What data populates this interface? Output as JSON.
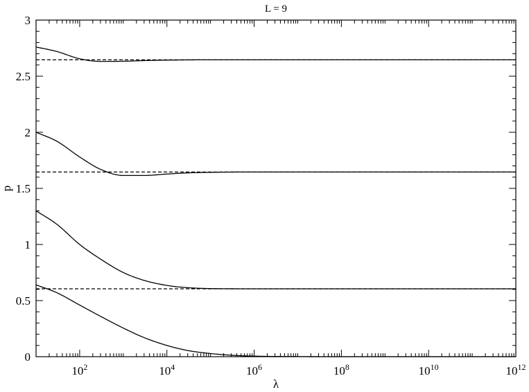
{
  "chart_data": {
    "type": "line",
    "title": "L = 9",
    "xlabel": "λ",
    "ylabel": "p",
    "x_scale": "log",
    "xlim": [
      10,
      1000000000000
    ],
    "ylim": [
      0,
      3
    ],
    "x_major_ticks": [
      {
        "value": 100,
        "base": "10",
        "exp": "2"
      },
      {
        "value": 10000,
        "base": "10",
        "exp": "4"
      },
      {
        "value": 1000000,
        "base": "10",
        "exp": "6"
      },
      {
        "value": 100000000,
        "base": "10",
        "exp": "8"
      },
      {
        "value": 10000000000,
        "base": "10",
        "exp": "10"
      },
      {
        "value": 1000000000000,
        "base": "10",
        "exp": "12"
      }
    ],
    "y_major_ticks": [
      {
        "value": 0,
        "label": "0"
      },
      {
        "value": 0.5,
        "label": "0.5"
      },
      {
        "value": 1,
        "label": "1"
      },
      {
        "value": 1.5,
        "label": "1.5"
      },
      {
        "value": 2,
        "label": "2"
      },
      {
        "value": 2.5,
        "label": "2.5"
      },
      {
        "value": 3,
        "label": "3"
      }
    ],
    "y_minor_step": 0.1,
    "series": [
      {
        "style": "solid",
        "x": [
          10,
          30,
          100,
          300,
          1000,
          3000,
          10000,
          100000,
          1000000,
          10000000000,
          1000000000000
        ],
        "values": [
          2.76,
          2.72,
          2.655,
          2.632,
          2.633,
          2.639,
          2.643,
          2.646,
          2.646,
          2.646,
          2.646
        ]
      },
      {
        "style": "solid",
        "x": [
          10,
          30,
          100,
          300,
          1000,
          3000,
          10000,
          30000,
          100000,
          1000000,
          10000000,
          1000000000000
        ],
        "values": [
          2.0,
          1.92,
          1.78,
          1.67,
          1.615,
          1.615,
          1.628,
          1.638,
          1.643,
          1.646,
          1.646,
          1.646
        ]
      },
      {
        "style": "solid",
        "x": [
          10,
          30,
          100,
          300,
          1000,
          3000,
          10000,
          30000,
          100000,
          1000000,
          10000000,
          1000000000000
        ],
        "values": [
          1.3,
          1.18,
          1.0,
          0.87,
          0.75,
          0.68,
          0.635,
          0.615,
          0.607,
          0.605,
          0.605,
          0.605
        ]
      },
      {
        "style": "solid",
        "x": [
          10,
          30,
          100,
          300,
          1000,
          3000,
          10000,
          30000,
          100000,
          300000,
          1000000,
          10000000,
          100000000,
          1000000000000
        ],
        "values": [
          0.64,
          0.57,
          0.46,
          0.36,
          0.255,
          0.17,
          0.1,
          0.055,
          0.028,
          0.013,
          0.005,
          0.001,
          0.0,
          0.0
        ]
      },
      {
        "style": "dashed",
        "x": [
          10,
          1000000000000
        ],
        "values": [
          2.646,
          2.646
        ]
      },
      {
        "style": "dashed",
        "x": [
          10,
          1000000000000
        ],
        "values": [
          1.646,
          1.646
        ]
      },
      {
        "style": "dashed",
        "x": [
          10,
          1000000000000
        ],
        "values": [
          0.605,
          0.605
        ]
      }
    ]
  }
}
